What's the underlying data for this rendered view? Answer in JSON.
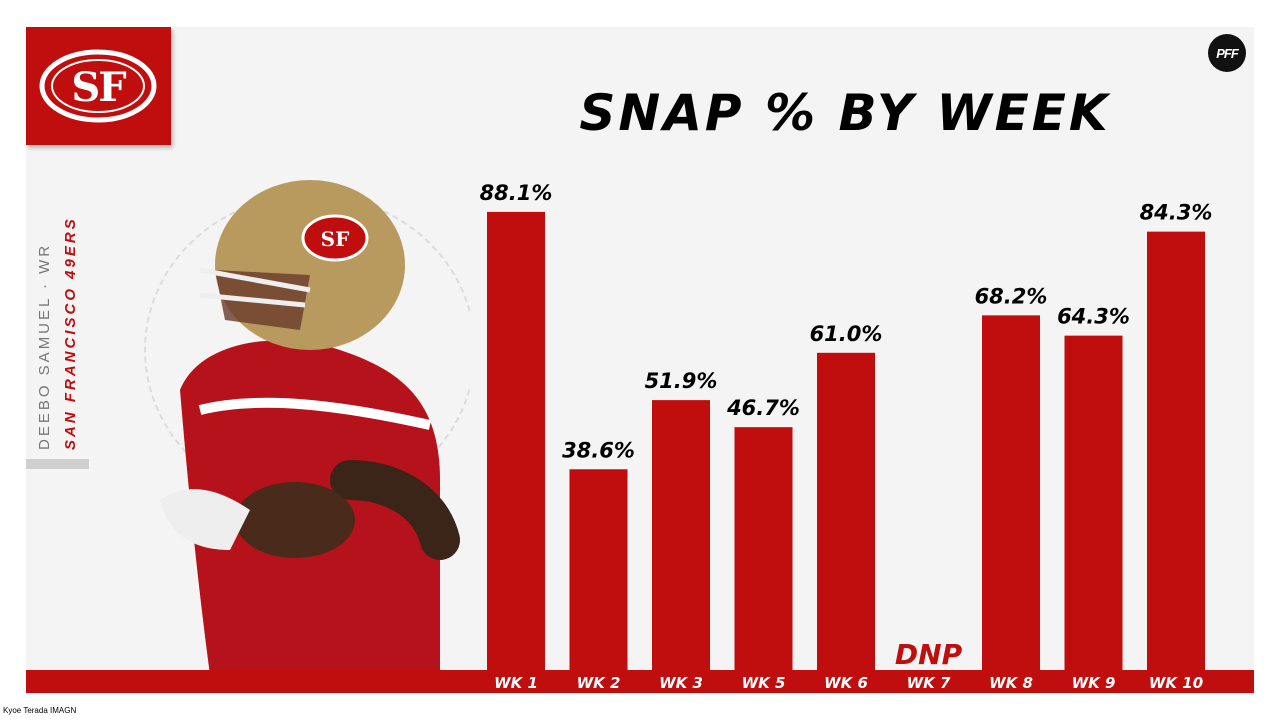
{
  "title": "SNAP % BY WEEK",
  "player": {
    "name": "DEEBO SAMUEL · WR",
    "team": "SAN FRANCISCO 49ERS"
  },
  "logo": {
    "text": "SF",
    "color": "#c00d0d"
  },
  "brand": "PFF",
  "credit": "Kyoe Terada IMAGN",
  "colors": {
    "accent": "#c00d0d",
    "panel": "#f4f4f4",
    "text": "#000000"
  },
  "chart_data": {
    "type": "bar",
    "categories": [
      "WK 1",
      "WK 2",
      "WK 3",
      "WK 5",
      "WK 6",
      "WK 7",
      "WK 8",
      "WK 9",
      "WK 10"
    ],
    "values": [
      88.1,
      38.6,
      51.9,
      46.7,
      61.0,
      null,
      68.2,
      64.3,
      84.3
    ],
    "labels": [
      "88.1%",
      "38.6%",
      "51.9%",
      "46.7%",
      "61.0%",
      "DNP",
      "68.2%",
      "64.3%",
      "84.3%"
    ],
    "ylim": [
      0,
      100
    ],
    "grid": false,
    "legend": "none",
    "title": "SNAP % BY WEEK",
    "xlabel": "",
    "ylabel": ""
  }
}
